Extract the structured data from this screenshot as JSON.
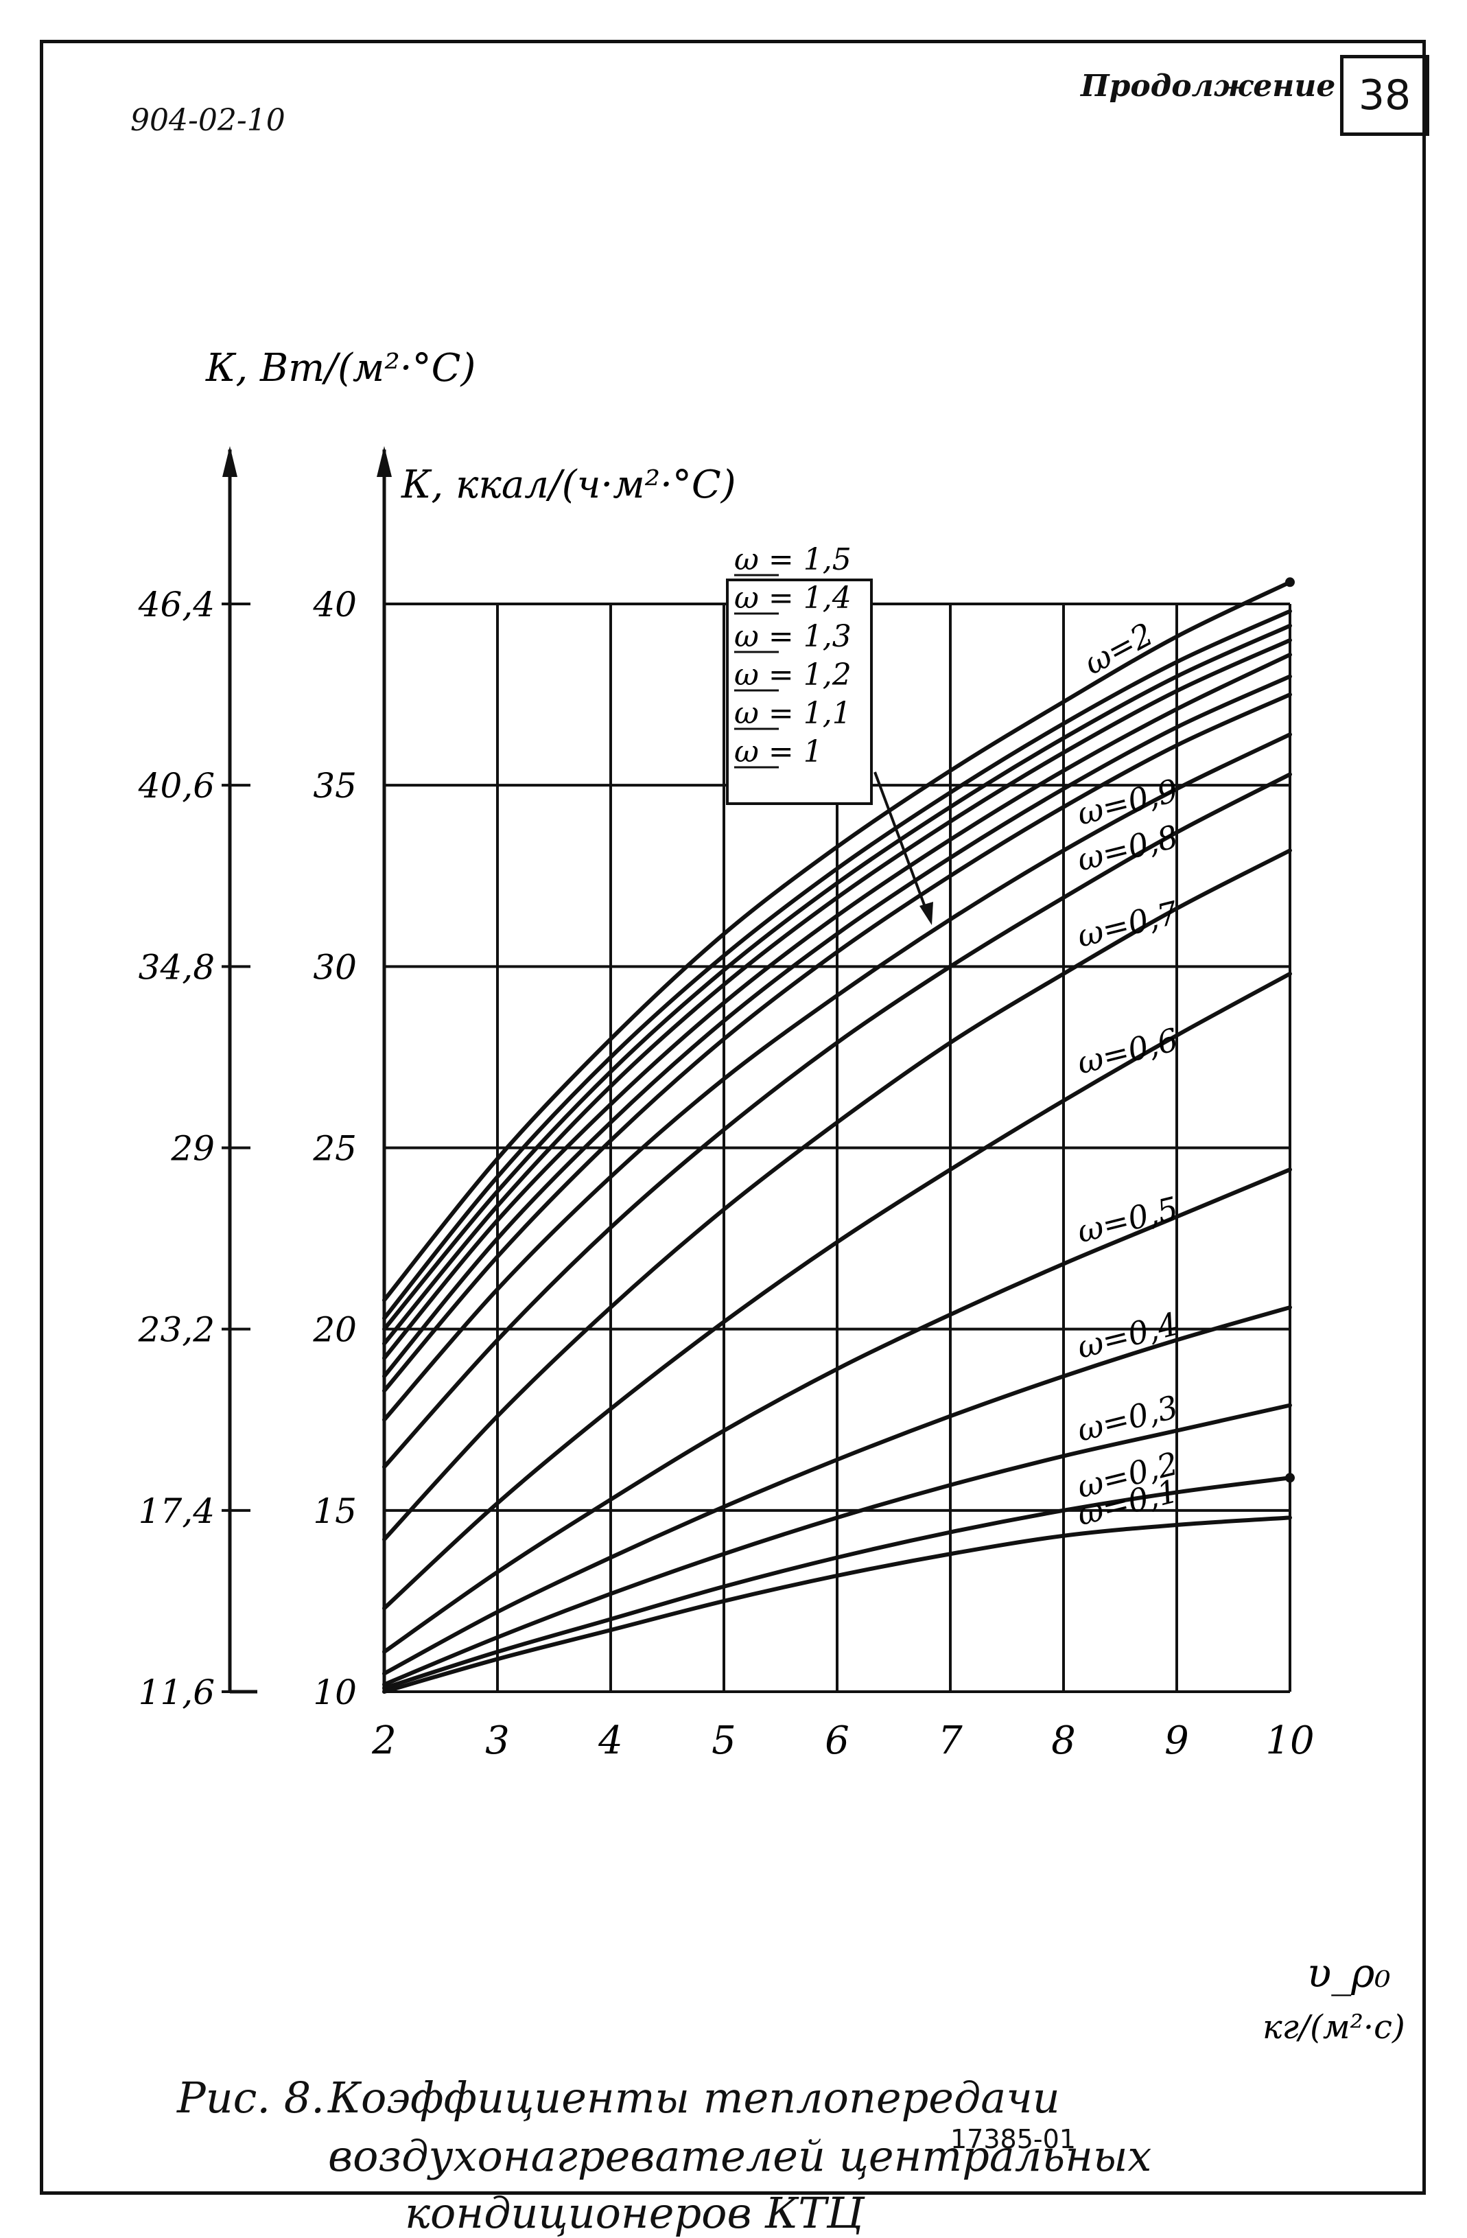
{
  "header": {
    "doc_code": "904-02-10",
    "continued_label": "Продолжение",
    "page_number": "38"
  },
  "caption": {
    "label": "Рис. 8.",
    "line1": "Коэффициенты теплопередачи",
    "line2": "воздухонагревателей центральных",
    "line3": "кондиционеров КТЦ"
  },
  "footer": {
    "code": "17385-01"
  },
  "chart_data": {
    "type": "line",
    "ylabel_w": "К, Вт/(м²·°С)",
    "ylabel_kcal": "К, ккал/(ч·м²·°С)",
    "xlabel": "υ_ρ₀",
    "xunit": "кг/(м²·с)",
    "xlim": [
      2,
      10
    ],
    "ylim": [
      10,
      40
    ],
    "grid": true,
    "x_ticks": [
      "2",
      "3",
      "4",
      "5",
      "6",
      "7",
      "8",
      "9",
      "10"
    ],
    "y_ticks_kcal": [
      "10",
      "15",
      "20",
      "25",
      "30",
      "35",
      "40"
    ],
    "y_ticks_w": [
      "11,6",
      "17,4",
      "23,2",
      "29",
      "34,8",
      "40,6",
      "46,4"
    ],
    "x": [
      2,
      3,
      4,
      5,
      6,
      7,
      8,
      9,
      10
    ],
    "series": [
      {
        "name": "ω=2",
        "values": [
          20.8,
          24.7,
          28.0,
          30.9,
          33.3,
          35.4,
          37.3,
          39.1,
          40.6
        ]
      },
      {
        "name": "ω=1,5",
        "values": [
          20.3,
          24.2,
          27.5,
          30.3,
          32.7,
          34.8,
          36.7,
          38.4,
          39.8
        ]
      },
      {
        "name": "ω=1,4",
        "values": [
          20.0,
          23.8,
          27.1,
          29.9,
          32.3,
          34.4,
          36.3,
          38.0,
          39.4
        ]
      },
      {
        "name": "ω=1,3",
        "values": [
          19.6,
          23.4,
          26.7,
          29.5,
          31.9,
          34.0,
          35.9,
          37.6,
          39.0
        ]
      },
      {
        "name": "ω=1,2",
        "values": [
          19.2,
          23.0,
          26.2,
          29.0,
          31.4,
          33.5,
          35.4,
          37.1,
          38.6
        ]
      },
      {
        "name": "ω=1,1",
        "values": [
          18.7,
          22.5,
          25.7,
          28.5,
          30.9,
          33.0,
          34.9,
          36.6,
          38.0
        ]
      },
      {
        "name": "ω=1",
        "values": [
          18.3,
          22.0,
          25.2,
          28.0,
          30.4,
          32.5,
          34.4,
          36.1,
          37.5
        ]
      },
      {
        "name": "ω=0,9",
        "values": [
          17.5,
          21.1,
          24.2,
          26.9,
          29.2,
          31.3,
          33.2,
          34.9,
          36.4
        ]
      },
      {
        "name": "ω=0,8",
        "values": [
          16.2,
          19.7,
          22.8,
          25.5,
          27.9,
          30.0,
          31.9,
          33.7,
          35.3
        ]
      },
      {
        "name": "ω=0,7",
        "values": [
          14.2,
          17.6,
          20.6,
          23.3,
          25.7,
          27.9,
          29.8,
          31.6,
          33.2
        ]
      },
      {
        "name": "ω=0,6",
        "values": [
          12.3,
          15.2,
          17.8,
          20.2,
          22.4,
          24.4,
          26.3,
          28.1,
          29.8
        ]
      },
      {
        "name": "ω=0,5",
        "values": [
          11.1,
          13.3,
          15.3,
          17.2,
          18.9,
          20.4,
          21.8,
          23.1,
          24.4
        ]
      },
      {
        "name": "ω=0,4",
        "values": [
          10.5,
          12.2,
          13.7,
          15.1,
          16.4,
          17.6,
          18.7,
          19.7,
          20.6
        ]
      },
      {
        "name": "ω=0,3",
        "values": [
          10.2,
          11.5,
          12.7,
          13.8,
          14.8,
          15.7,
          16.5,
          17.2,
          17.9
        ]
      },
      {
        "name": "ω=0,2",
        "values": [
          10.1,
          11.1,
          12.0,
          12.9,
          13.7,
          14.4,
          15.0,
          15.5,
          15.9
        ]
      },
      {
        "name": "ω=0,1",
        "values": [
          10.0,
          10.9,
          11.7,
          12.5,
          13.2,
          13.8,
          14.3,
          14.6,
          14.8
        ]
      }
    ],
    "line_labels_right": [
      "ω=2",
      "ω=0,9",
      "ω=0,8",
      "ω=0,7",
      "ω=0,6",
      "ω=0,5",
      "ω=0,4",
      "ω=0,3",
      "ω=0,2",
      "ω=0,1"
    ],
    "legend_box": [
      "ω = 1,5",
      "ω = 1,4",
      "ω = 1,3",
      "ω = 1,2",
      "ω = 1,1",
      "ω = 1"
    ]
  }
}
